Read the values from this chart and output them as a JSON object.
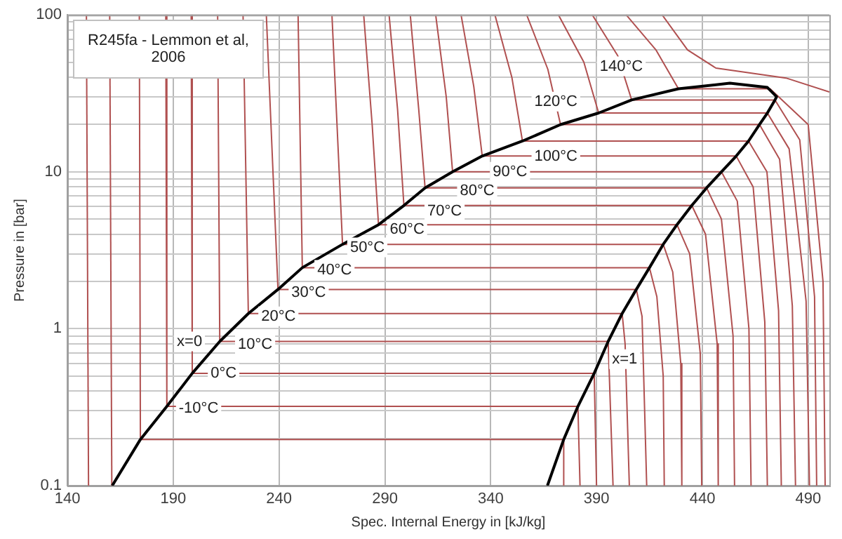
{
  "chart_data": {
    "type": "line",
    "xlabel": "Spec. Internal Energy in [kJ/kg]",
    "ylabel": "Pressure in [bar]",
    "xlim": [
      140,
      500
    ],
    "xticks": [
      140,
      190,
      240,
      290,
      340,
      390,
      440,
      490
    ],
    "ylim": [
      0.1,
      100
    ],
    "log": "y",
    "yticks": [
      0.1,
      {
        "value": 0.2,
        "label": null
      },
      {
        "value": 0.3,
        "label": null
      },
      {
        "value": 0.4,
        "label": null
      },
      {
        "value": 0.5,
        "label": null
      },
      {
        "value": 0.6,
        "label": null
      },
      {
        "value": 0.7,
        "label": null
      },
      {
        "value": 0.8,
        "label": null
      },
      {
        "value": 0.9,
        "label": null
      },
      1,
      {
        "value": 2,
        "label": null
      },
      {
        "value": 3,
        "label": null
      },
      {
        "value": 4,
        "label": null
      },
      {
        "value": 5,
        "label": null
      },
      {
        "value": 6,
        "label": null
      },
      {
        "value": 7,
        "label": null
      },
      {
        "value": 8,
        "label": null
      },
      {
        "value": 9,
        "label": null
      },
      10,
      {
        "value": 20,
        "label": null
      },
      {
        "value": 30,
        "label": null
      },
      {
        "value": 40,
        "label": null
      },
      {
        "value": 50,
        "label": null
      },
      {
        "value": 60,
        "label": null
      },
      {
        "value": 70,
        "label": null
      },
      {
        "value": 80,
        "label": null
      },
      {
        "value": 90,
        "label": null
      },
      100
    ],
    "grid": true,
    "legend": false,
    "marker": "none",
    "line_style": "solid",
    "series": [
      {
        "color": "#000000",
        "x": [
          161.2,
          174.5,
          187,
          199,
          212,
          225.5,
          239.5,
          251,
          270,
          287,
          299,
          309,
          322,
          336,
          355,
          373,
          391,
          406.6,
          428.7,
          453,
          470.7,
          475.1,
          474.3,
          470.7,
          467,
          461.8,
          456,
          449,
          442,
          435,
          428,
          421.5,
          415,
          408.8,
          402.1,
          395.5,
          388.9,
          381.2,
          374.5,
          366.8
        ],
        "values": [
          0.1,
          0.197,
          0.32,
          0.52,
          0.83,
          1.25,
          1.78,
          2.45,
          3.45,
          4.6,
          6.1,
          7.9,
          10,
          12.6,
          15.7,
          20,
          23.7,
          28.7,
          33.8,
          36.7,
          34.5,
          30.1,
          28.7,
          23.7,
          20,
          15.7,
          12.6,
          10,
          7.9,
          6.1,
          4.6,
          3.45,
          2.45,
          1.78,
          1.25,
          0.83,
          0.52,
          0.32,
          0.197,
          0.1
        ]
      },
      {
        "color": "#b05050",
        "x": [
          149,
          150
        ],
        "values": [
          100,
          0.1
        ]
      },
      {
        "color": "#b05050",
        "x": [
          160,
          161
        ],
        "values": [
          100,
          0.1
        ]
      },
      {
        "color": "#b05050",
        "x": [
          174,
          174.5,
          374.5,
          374.5
        ],
        "values": [
          100,
          0.197,
          0.197,
          0.1
        ]
      },
      {
        "color": "#b05050",
        "x": [
          186.5,
          187,
          381.2,
          382.2
        ],
        "values": [
          100,
          0.32,
          0.32,
          0.1
        ]
      },
      {
        "color": "#b05050",
        "x": [
          198.5,
          199,
          388.9,
          390
        ],
        "values": [
          100,
          0.52,
          0.52,
          0.1
        ]
      },
      {
        "color": "#b05050",
        "x": [
          211,
          212,
          395.5,
          397.8
        ],
        "values": [
          100,
          0.83,
          0.83,
          0.1
        ]
      },
      {
        "color": "#b05050",
        "x": [
          223,
          225.5,
          402.1,
          403.5,
          405.5
        ],
        "values": [
          100,
          1.25,
          1.25,
          0.8,
          0.1
        ]
      },
      {
        "color": "#b05050",
        "x": [
          234,
          239.5,
          408.8,
          411.5,
          413.7
        ],
        "values": [
          100,
          1.78,
          1.78,
          1.2,
          0.1
        ]
      },
      {
        "color": "#b05050",
        "x": [
          249,
          251,
          415,
          418.5,
          421.5,
          422
        ],
        "values": [
          100,
          2.45,
          2.45,
          1.6,
          0.5,
          0.1
        ]
      },
      {
        "color": "#b05050",
        "x": [
          265,
          270,
          421.5,
          426,
          429.8,
          430.3
        ],
        "values": [
          100,
          3.45,
          3.45,
          2.3,
          0.6,
          0.1
        ]
      },
      {
        "color": "#b05050",
        "x": [
          280,
          284,
          287,
          428,
          434,
          439,
          439.7
        ],
        "values": [
          100,
          20,
          4.6,
          4.6,
          3,
          0.7,
          0.1
        ]
      },
      {
        "color": "#b05050",
        "x": [
          292,
          296,
          299,
          435,
          441.5,
          447,
          447.5
        ],
        "values": [
          100,
          25,
          6.1,
          6.1,
          4,
          0.8,
          0.1
        ]
      },
      {
        "color": "#b05050",
        "x": [
          302,
          306,
          309,
          442,
          449,
          454.5,
          455.2
        ],
        "values": [
          100,
          25,
          7.9,
          7.9,
          5,
          0.9,
          0.1
        ]
      },
      {
        "color": "#b05050",
        "x": [
          314,
          319,
          322,
          449,
          456.5,
          462,
          463
        ],
        "values": [
          100,
          30,
          10,
          10,
          6.5,
          1,
          0.1
        ]
      },
      {
        "color": "#b05050",
        "x": [
          326,
          332,
          336,
          456,
          464,
          469.5,
          470.7
        ],
        "values": [
          100,
          35,
          12.6,
          12.6,
          8,
          1.1,
          0.1
        ]
      },
      {
        "color": "#b05050",
        "x": [
          342,
          350,
          355,
          461.8,
          470.5,
          476,
          477.3
        ],
        "values": [
          100,
          40,
          15.7,
          15.7,
          10,
          1.3,
          0.1
        ]
      },
      {
        "color": "#b05050",
        "x": [
          357,
          367,
          373,
          467,
          476.5,
          482.5,
          484
        ],
        "values": [
          100,
          45,
          20,
          20,
          12,
          1.4,
          0.1
        ]
      },
      {
        "color": "#b05050",
        "x": [
          372,
          384,
          391,
          470.7,
          481,
          489,
          490.6
        ],
        "values": [
          100,
          50,
          23.7,
          23.7,
          14,
          1.5,
          0.1
        ]
      },
      {
        "color": "#b05050",
        "x": [
          388,
          400,
          406.6,
          474.3,
          486,
          493,
          494
        ],
        "values": [
          100,
          55,
          28.7,
          28.7,
          16,
          1.6,
          0.1
        ]
      },
      {
        "color": "#b05050",
        "x": [
          404,
          418,
          428.7,
          472,
          490,
          497,
          498
        ],
        "values": [
          100,
          60,
          33.8,
          33.8,
          20,
          2,
          0.1
        ]
      },
      {
        "color": "#b05050",
        "x": [
          421,
          433,
          446.4,
          479.5,
          500
        ],
        "values": [
          100,
          59.8,
          45.8,
          39.6,
          32.3
        ]
      }
    ],
    "annotations": [
      "R245fa - Lemmon et al, 2006",
      {
        "text": "x=0",
        "x": 197.7,
        "y": 0.83
      },
      {
        "text": "x=1",
        "x": 403.3,
        "y": 0.64
      },
      {
        "text": "-10°C",
        "x": 202,
        "y": 0.312
      },
      {
        "text": "0°C",
        "x": 213.8,
        "y": 0.52
      },
      {
        "text": "10°C",
        "x": 228.7,
        "y": 0.79
      },
      {
        "text": "20°C",
        "x": 239.7,
        "y": 1.2
      },
      {
        "text": "30°C",
        "x": 254,
        "y": 1.7
      },
      {
        "text": "40°C",
        "x": 266.2,
        "y": 2.37
      },
      {
        "text": "50°C",
        "x": 281.7,
        "y": 3.3
      },
      {
        "text": "60°C",
        "x": 300.5,
        "y": 4.3
      },
      {
        "text": "70°C",
        "x": 318.2,
        "y": 5.6
      },
      {
        "text": "80°C",
        "x": 333.6,
        "y": 7.6
      },
      {
        "text": "90°C",
        "x": 349.1,
        "y": 10
      },
      {
        "text": "100°C",
        "x": 370.8,
        "y": 12.5
      },
      {
        "text": "120°C",
        "x": 370.8,
        "y": 28
      },
      {
        "text": "140°C",
        "x": 401.7,
        "y": 47
      }
    ]
  }
}
